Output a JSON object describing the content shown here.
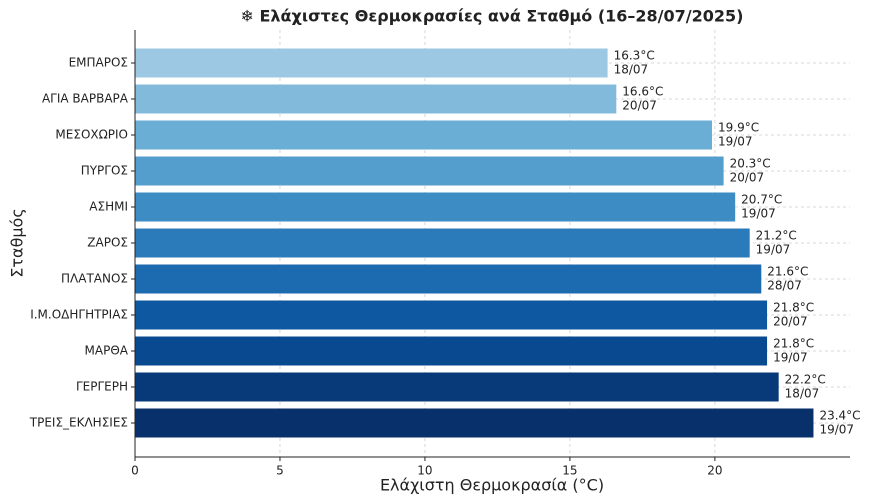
{
  "chart_data": {
    "type": "bar",
    "orientation": "horizontal",
    "title": "❄ Ελάχιστες Θερμοκρασίες ανά Σταθμό (16–28/07/2025)",
    "xlabel": "Ελάχιστη Θερμοκρασία (°C)",
    "ylabel": "Σταθμός",
    "categories": [
      "ΕΜΠΑΡΟΣ",
      "ΑΓΙΑ ΒΑΡΒΑΡΑ",
      "ΜΕΣΟΧΩΡΙΟ",
      "ΠΥΡΓΟΣ",
      "ΑΣΗΜΙ",
      "ΖΑΡΟΣ",
      "ΠΛΑΤΑΝΟΣ",
      "Ι.Μ.ΟΔΗΓΗΤΡΙΑΣ",
      "ΜΑΡΘΑ",
      "ΓΕΡΓΕΡΗ",
      "ΤΡΕΙΣ_ΕΚΛΗΣΙΕΣ"
    ],
    "values": [
      16.3,
      16.6,
      19.9,
      20.3,
      20.7,
      21.2,
      21.6,
      21.8,
      21.8,
      22.2,
      23.4
    ],
    "value_labels": [
      "16.3°C",
      "16.6°C",
      "19.9°C",
      "20.3°C",
      "20.7°C",
      "21.2°C",
      "21.6°C",
      "21.8°C",
      "21.8°C",
      "22.2°C",
      "23.4°C"
    ],
    "dates": [
      "18/07",
      "20/07",
      "19/07",
      "20/07",
      "19/07",
      "19/07",
      "28/07",
      "20/07",
      "19/07",
      "18/07",
      "19/07"
    ],
    "colors": [
      "#9dc8e3",
      "#82badb",
      "#6aaed6",
      "#539ecd",
      "#3d8dc4",
      "#2b7bba",
      "#1c6aaf",
      "#0d58a1",
      "#084990",
      "#083a7a",
      "#08306b"
    ],
    "xlim": [
      0,
      24.66
    ],
    "xticks": [
      0,
      5,
      10,
      15,
      20
    ],
    "grid": true
  }
}
